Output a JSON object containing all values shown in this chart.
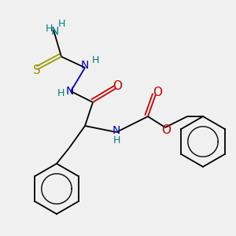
{
  "background_color": "#f0f0f0",
  "figsize": [
    3.0,
    3.0
  ],
  "dpi": 100,
  "colors": {
    "C": "#000000",
    "N": "#0000cc",
    "O": "#cc0000",
    "S": "#999900",
    "H": "#008080"
  },
  "bond_lw": 1.3,
  "ring_r": 0.055,
  "font_size": 10
}
